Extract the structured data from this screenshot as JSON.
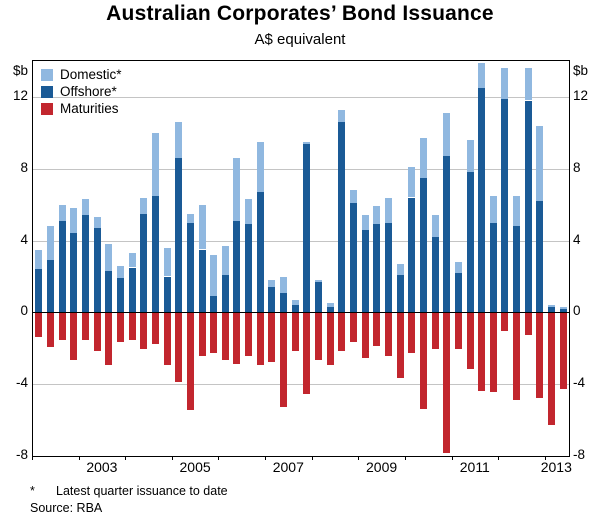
{
  "title": "Australian Corporates’ Bond Issuance",
  "subtitle": "A$ equivalent",
  "unit_left": "$b",
  "unit_right": "$b",
  "legend": [
    {
      "name": "domestic",
      "label": "Domestic*",
      "color": "#90b8e0"
    },
    {
      "name": "offshore",
      "label": "Offshore*",
      "color": "#1a5a96"
    },
    {
      "name": "maturities",
      "label": "Maturities",
      "color": "#c2262e"
    }
  ],
  "footnote_marker": "*",
  "footnote_text": "Latest quarter issuance to date",
  "source": "Source: RBA",
  "chart_data": {
    "type": "bar",
    "stacked": true,
    "title": "Australian Corporates’ Bond Issuance",
    "subtitle": "A$ equivalent",
    "ylabel": "$b",
    "ylim": [
      -8,
      14
    ],
    "yticks": [
      -8,
      -4,
      0,
      4,
      8,
      12
    ],
    "grid": true,
    "legend_position": "top-left",
    "quarters": [
      "2002Q1",
      "2002Q2",
      "2002Q3",
      "2002Q4",
      "2003Q1",
      "2003Q2",
      "2003Q3",
      "2003Q4",
      "2004Q1",
      "2004Q2",
      "2004Q3",
      "2004Q4",
      "2005Q1",
      "2005Q2",
      "2005Q3",
      "2005Q4",
      "2006Q1",
      "2006Q2",
      "2006Q3",
      "2006Q4",
      "2007Q1",
      "2007Q2",
      "2007Q3",
      "2007Q4",
      "2008Q1",
      "2008Q2",
      "2008Q3",
      "2008Q4",
      "2009Q1",
      "2009Q2",
      "2009Q3",
      "2009Q4",
      "2010Q1",
      "2010Q2",
      "2010Q3",
      "2010Q4",
      "2011Q1",
      "2011Q2",
      "2011Q3",
      "2011Q4",
      "2012Q1",
      "2012Q2",
      "2012Q3",
      "2012Q4",
      "2013Q1",
      "2013Q2"
    ],
    "series": [
      {
        "name": "Offshore",
        "color": "#1a5a96",
        "values": [
          2.4,
          2.9,
          5.1,
          4.4,
          5.4,
          4.7,
          2.3,
          1.9,
          2.5,
          5.5,
          6.5,
          2.0,
          8.6,
          5.0,
          3.5,
          0.9,
          2.1,
          5.1,
          4.9,
          6.7,
          1.4,
          1.1,
          0.4,
          9.4,
          1.7,
          0.3,
          10.6,
          6.1,
          4.6,
          4.9,
          5.0,
          2.1,
          6.4,
          7.5,
          4.2,
          8.7,
          2.2,
          7.8,
          12.5,
          5.0,
          11.9,
          4.8,
          11.8,
          6.2,
          0.3,
          0.2
        ]
      },
      {
        "name": "Domestic",
        "color": "#90b8e0",
        "values": [
          1.1,
          1.9,
          0.9,
          1.4,
          0.9,
          0.6,
          1.5,
          0.7,
          0.8,
          0.9,
          3.5,
          1.6,
          2.0,
          0.5,
          2.5,
          2.3,
          1.6,
          3.5,
          1.4,
          2.8,
          0.4,
          0.9,
          0.3,
          0.1,
          0.1,
          0.2,
          0.7,
          0.7,
          0.8,
          1.0,
          1.4,
          0.6,
          1.7,
          2.2,
          1.2,
          2.4,
          0.6,
          1.8,
          1.4,
          1.5,
          1.7,
          1.7,
          1.8,
          4.2,
          0.1,
          0.1
        ]
      },
      {
        "name": "Maturities",
        "color": "#c2262e",
        "values": [
          -1.3,
          -1.9,
          -1.5,
          -2.6,
          -1.5,
          -2.1,
          -2.9,
          -1.6,
          -1.5,
          -2.0,
          -1.7,
          -2.9,
          -3.8,
          -5.4,
          -2.4,
          -2.2,
          -2.6,
          -2.8,
          -2.4,
          -2.9,
          -2.7,
          -5.2,
          -2.1,
          -4.5,
          -2.6,
          -2.9,
          -2.1,
          -1.6,
          -2.5,
          -1.8,
          -2.4,
          -3.6,
          -2.2,
          -5.3,
          -2.0,
          -7.8,
          -2.0,
          -3.1,
          -4.3,
          -4.4,
          -1.0,
          -4.8,
          -1.2,
          -4.7,
          -6.2,
          -4.2
        ]
      }
    ],
    "year_labels": [
      {
        "label": "2003",
        "center_index": 6
      },
      {
        "label": "2005",
        "center_index": 14
      },
      {
        "label": "2007",
        "center_index": 22
      },
      {
        "label": "2009",
        "center_index": 30
      },
      {
        "label": "2011",
        "center_index": 38
      },
      {
        "label": "2013",
        "center_index": 45
      }
    ],
    "year_tick_indices": [
      0,
      4,
      8,
      12,
      16,
      20,
      24,
      28,
      32,
      36,
      40,
      44
    ]
  }
}
